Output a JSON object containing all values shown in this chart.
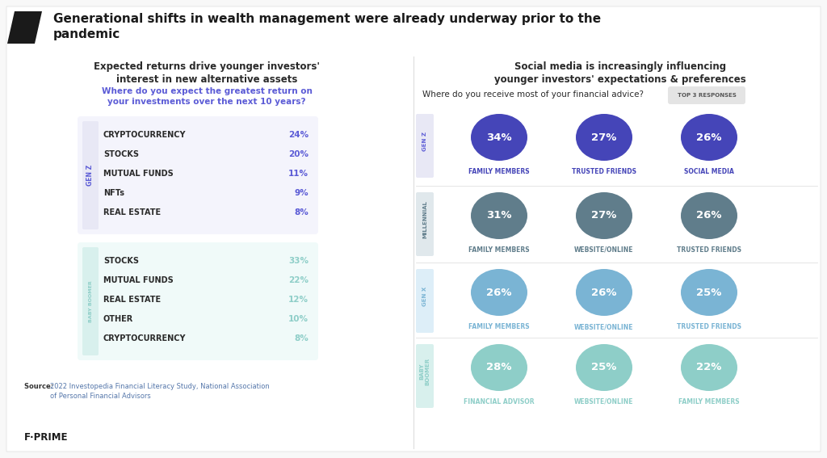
{
  "title": "Generational shifts in wealth management were already underway prior to the\npandemic",
  "left_subtitle": "Expected returns drive younger investors'\ninterest in new alternative assets",
  "left_question": "Where do you expect the greatest return on\nyour investments over the next 10 years?",
  "right_subtitle": "Social media is increasingly influencing\nyounger investors' expectations & preferences",
  "right_question": "Where do you receive most of your financial advice?",
  "right_tag": "TOP 3 RESPONSES",
  "source_bold": "Source:",
  "source_rest": " 2022 Investopedia Financial Literacy Study, National Association\nof Personal Financial Advisors",
  "brand": "F·PRIME",
  "genz_color": "#5b5bd6",
  "genz_bg": "#e8e8f5",
  "boomer_color": "#8ecec8",
  "boomer_bg": "#d8f0ed",
  "genz_items": [
    {
      "label": "CRYPTOCURRENCY",
      "value": "24%"
    },
    {
      "label": "STOCKS",
      "value": "20%"
    },
    {
      "label": "MUTUAL FUNDS",
      "value": "11%"
    },
    {
      "label": "NFTs",
      "value": "9%"
    },
    {
      "label": "REAL ESTATE",
      "value": "8%"
    }
  ],
  "boomer_items": [
    {
      "label": "STOCKS",
      "value": "33%"
    },
    {
      "label": "MUTUAL FUNDS",
      "value": "22%"
    },
    {
      "label": "REAL ESTATE",
      "value": "12%"
    },
    {
      "label": "OTHER",
      "value": "10%"
    },
    {
      "label": "CRYPTOCURRENCY",
      "value": "8%"
    }
  ],
  "right_rows": [
    {
      "gen": "GEN Z",
      "gen_color": "#5b5bd6",
      "gen_bg": "#e8e8f5",
      "circle_color": "#4545b8",
      "label_color": "#4545b8",
      "items": [
        {
          "pct": "34%",
          "label": "FAMILY MEMBERS"
        },
        {
          "pct": "27%",
          "label": "TRUSTED FRIENDS"
        },
        {
          "pct": "26%",
          "label": "SOCIAL MEDIA"
        }
      ]
    },
    {
      "gen": "MILLENNIAL",
      "gen_color": "#607d8b",
      "gen_bg": "#e0e8ec",
      "circle_color": "#607d8b",
      "label_color": "#607d8b",
      "items": [
        {
          "pct": "31%",
          "label": "FAMILY MEMBERS"
        },
        {
          "pct": "27%",
          "label": "WEBSITE/ONLINE"
        },
        {
          "pct": "26%",
          "label": "TRUSTED FRIENDS"
        }
      ]
    },
    {
      "gen": "GEN X",
      "gen_color": "#7ab4d4",
      "gen_bg": "#ddeef8",
      "circle_color": "#7ab4d4",
      "label_color": "#7ab4d4",
      "items": [
        {
          "pct": "26%",
          "label": "FAMILY MEMBERS"
        },
        {
          "pct": "26%",
          "label": "WEBSITE/ONLINE"
        },
        {
          "pct": "25%",
          "label": "TRUSTED FRIENDS"
        }
      ]
    },
    {
      "gen": "BABY\nBOOMER",
      "gen_color": "#8ecec8",
      "gen_bg": "#d8f0ed",
      "circle_color": "#8ecec8",
      "label_color": "#8ecec8",
      "items": [
        {
          "pct": "28%",
          "label": "FINANCIAL ADVISOR"
        },
        {
          "pct": "25%",
          "label": "WEBSITE/ONLINE"
        },
        {
          "pct": "22%",
          "label": "FAMILY MEMBERS"
        }
      ]
    }
  ],
  "background_color": "#f8f8f8",
  "panel_bg": "#ffffff"
}
